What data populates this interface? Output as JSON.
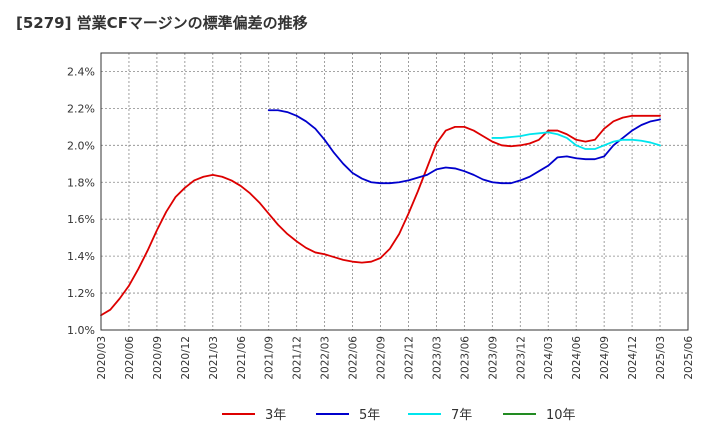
{
  "chart_data": {
    "type": "line",
    "title": "[5279]  営業CFマージンの標準偏差の推移",
    "xlabel": "",
    "ylabel": "",
    "ylim": [
      1.0,
      2.5
    ],
    "y_ticks": [
      "1.0%",
      "1.2%",
      "1.4%",
      "1.6%",
      "1.8%",
      "2.0%",
      "2.2%",
      "2.4%"
    ],
    "y_tick_values": [
      1.0,
      1.2,
      1.4,
      1.6,
      1.8,
      2.0,
      2.2,
      2.4
    ],
    "x_ticks": [
      "2020/03",
      "2020/06",
      "2020/09",
      "2020/12",
      "2021/03",
      "2021/06",
      "2021/09",
      "2021/12",
      "2022/03",
      "2022/06",
      "2022/09",
      "2022/12",
      "2023/03",
      "2023/06",
      "2023/09",
      "2023/12",
      "2024/03",
      "2024/06",
      "2024/09",
      "2024/12",
      "2025/03",
      "2025/06"
    ],
    "grid": true,
    "legend_position": "bottom",
    "series": [
      {
        "name": "3年",
        "color": "#dd0000",
        "x": [
          "2020/03",
          "2020/04",
          "2020/05",
          "2020/06",
          "2020/07",
          "2020/08",
          "2020/09",
          "2020/10",
          "2020/11",
          "2020/12",
          "2021/01",
          "2021/02",
          "2021/03",
          "2021/04",
          "2021/05",
          "2021/06",
          "2021/07",
          "2021/08",
          "2021/09",
          "2021/10",
          "2021/11",
          "2021/12",
          "2022/01",
          "2022/02",
          "2022/03",
          "2022/04",
          "2022/05",
          "2022/06",
          "2022/07",
          "2022/08",
          "2022/09",
          "2022/10",
          "2022/11",
          "2022/12",
          "2023/01",
          "2023/02",
          "2023/03",
          "2023/04",
          "2023/05",
          "2023/06",
          "2023/07",
          "2023/08",
          "2023/09",
          "2023/10",
          "2023/11",
          "2023/12",
          "2024/01",
          "2024/02",
          "2024/03",
          "2024/04",
          "2024/05",
          "2024/06",
          "2024/07",
          "2024/08",
          "2024/09",
          "2024/10",
          "2024/11",
          "2024/12",
          "2025/01",
          "2025/02",
          "2025/03"
        ],
        "values": [
          1.08,
          1.11,
          1.17,
          1.24,
          1.33,
          1.43,
          1.54,
          1.64,
          1.72,
          1.77,
          1.81,
          1.83,
          1.84,
          1.83,
          1.81,
          1.78,
          1.74,
          1.69,
          1.63,
          1.57,
          1.52,
          1.48,
          1.445,
          1.42,
          1.41,
          1.395,
          1.38,
          1.37,
          1.365,
          1.37,
          1.39,
          1.44,
          1.52,
          1.63,
          1.75,
          1.88,
          2.01,
          2.08,
          2.1,
          2.1,
          2.08,
          2.05,
          2.02,
          2.0,
          1.995,
          2.0,
          2.01,
          2.03,
          2.08,
          2.08,
          2.06,
          2.03,
          2.02,
          2.03,
          2.09,
          2.13,
          2.15,
          2.16,
          2.16,
          2.16,
          2.16
        ]
      },
      {
        "name": "5年",
        "color": "#0000cc",
        "x": [
          "2021/09",
          "2021/10",
          "2021/11",
          "2021/12",
          "2022/01",
          "2022/02",
          "2022/03",
          "2022/04",
          "2022/05",
          "2022/06",
          "2022/07",
          "2022/08",
          "2022/09",
          "2022/10",
          "2022/11",
          "2022/12",
          "2023/01",
          "2023/02",
          "2023/03",
          "2023/04",
          "2023/05",
          "2023/06",
          "2023/07",
          "2023/08",
          "2023/09",
          "2023/10",
          "2023/11",
          "2023/12",
          "2024/01",
          "2024/02",
          "2024/03",
          "2024/04",
          "2024/05",
          "2024/06",
          "2024/07",
          "2024/08",
          "2024/09",
          "2024/10",
          "2024/11",
          "2024/12",
          "2025/01",
          "2025/02",
          "2025/03"
        ],
        "values": [
          2.19,
          2.19,
          2.18,
          2.16,
          2.13,
          2.09,
          2.03,
          1.96,
          1.9,
          1.85,
          1.82,
          1.8,
          1.795,
          1.795,
          1.8,
          1.81,
          1.825,
          1.84,
          1.87,
          1.88,
          1.875,
          1.86,
          1.84,
          1.815,
          1.8,
          1.795,
          1.795,
          1.81,
          1.83,
          1.86,
          1.89,
          1.935,
          1.94,
          1.93,
          1.925,
          1.925,
          1.94,
          2.0,
          2.04,
          2.08,
          2.11,
          2.13,
          2.14
        ]
      },
      {
        "name": "7年",
        "color": "#00e5ee",
        "x": [
          "2023/09",
          "2023/10",
          "2023/11",
          "2023/12",
          "2024/01",
          "2024/02",
          "2024/03",
          "2024/04",
          "2024/05",
          "2024/06",
          "2024/07",
          "2024/08",
          "2024/09",
          "2024/10",
          "2024/11",
          "2024/12",
          "2025/01",
          "2025/02",
          "2025/03"
        ],
        "values": [
          2.04,
          2.04,
          2.045,
          2.05,
          2.06,
          2.065,
          2.07,
          2.06,
          2.04,
          2.0,
          1.98,
          1.98,
          2.0,
          2.02,
          2.03,
          2.03,
          2.025,
          2.015,
          2.0
        ]
      },
      {
        "name": "10年",
        "color": "#228b22",
        "x": [],
        "values": []
      }
    ]
  }
}
